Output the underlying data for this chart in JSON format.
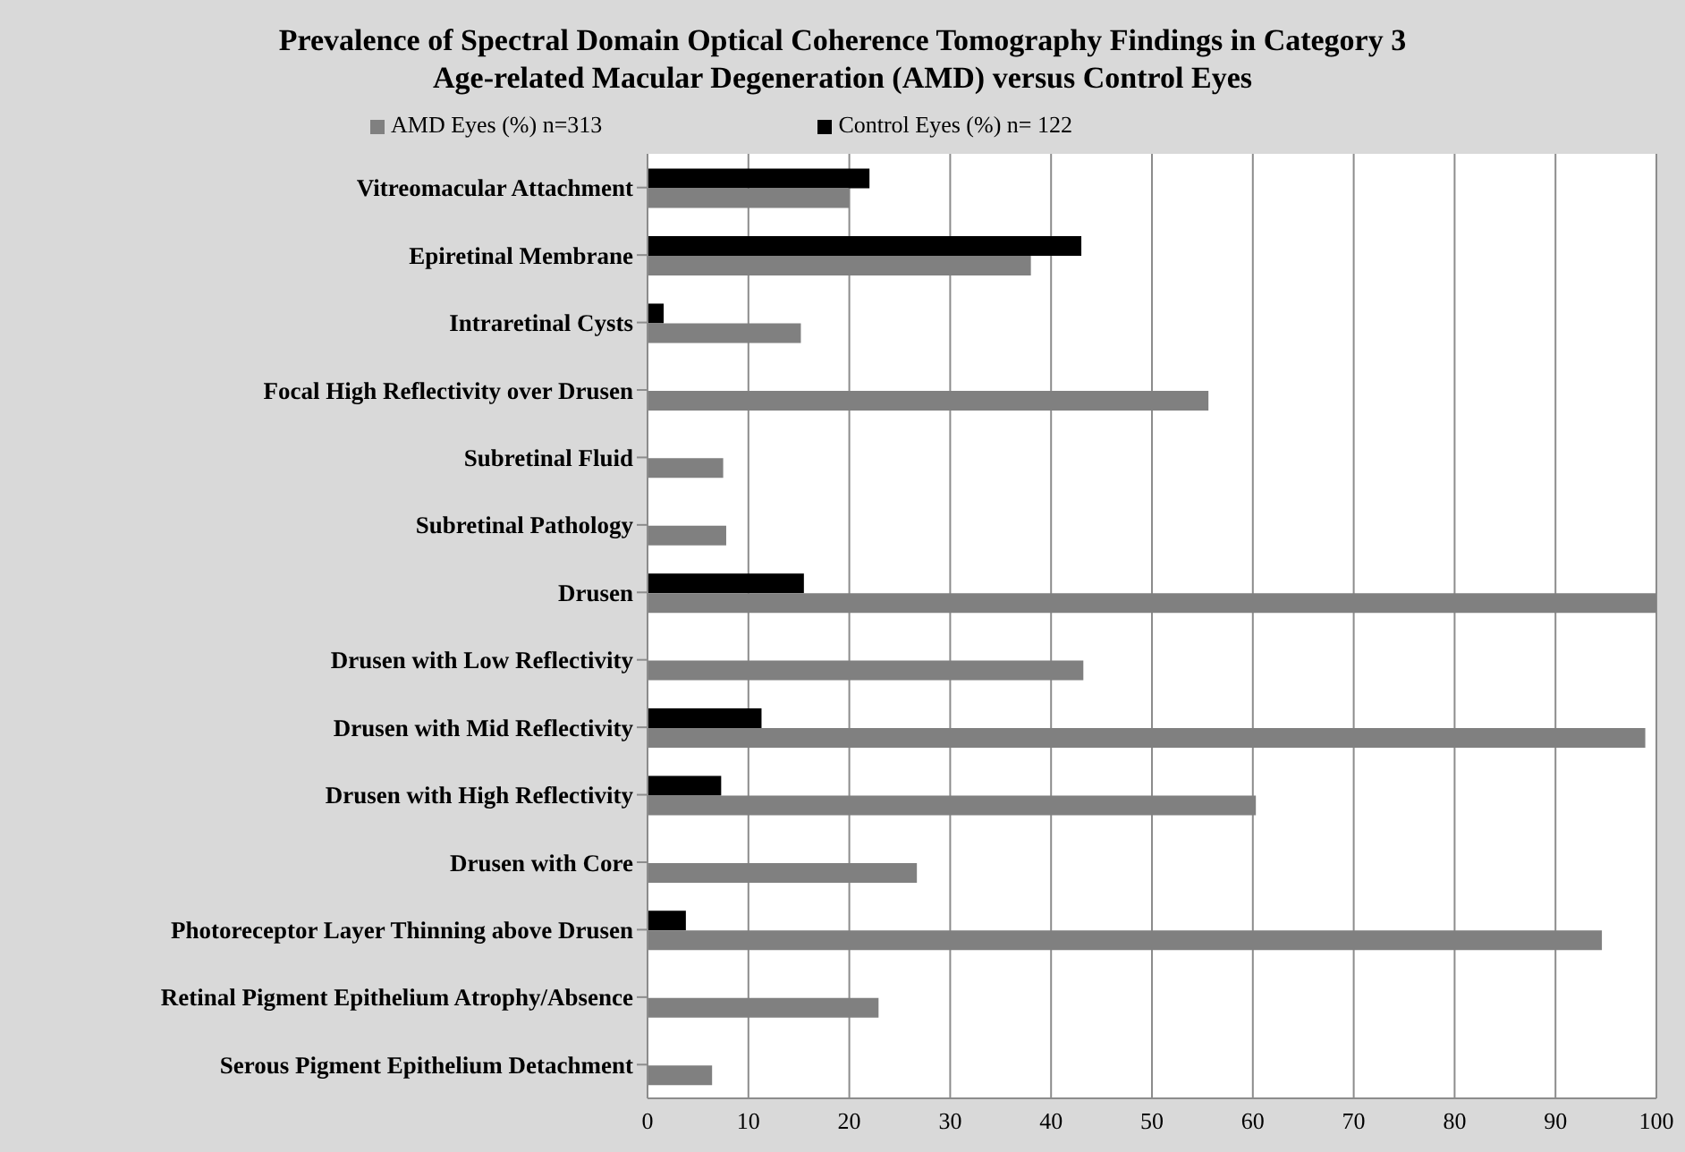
{
  "chart_data": {
    "type": "bar",
    "orientation": "horizontal",
    "title": "Prevalence of Spectral Domain Optical Coherence Tomography Findings in Category 3\nAge-related Macular Degeneration (AMD) versus Control Eyes",
    "categories": [
      "Vitreomacular Attachment",
      "Epiretinal Membrane",
      "Intraretinal Cysts",
      "Focal High Reflectivity over Drusen",
      "Subretinal Fluid",
      "Subretinal Pathology",
      "Drusen",
      "Drusen with Low Reflectivity",
      "Drusen with Mid Reflectivity",
      "Drusen with High Reflectivity",
      "Drusen with Core",
      "Photoreceptor Layer Thinning above Drusen",
      "Retinal Pigment Epithelium Atrophy/Absence",
      "Serous Pigment Epithelium Detachment"
    ],
    "series": [
      {
        "name": "Control Eyes (%) n= 122",
        "color": "#000000",
        "values": [
          22,
          43,
          1.6,
          0,
          0,
          0,
          15.5,
          0,
          11.3,
          7.3,
          0,
          3.8,
          0,
          0
        ]
      },
      {
        "name": "AMD Eyes (%) n=313",
        "color": "#808080",
        "values": [
          20,
          38,
          15.2,
          55.6,
          7.5,
          7.8,
          100,
          43.2,
          98.9,
          60.3,
          26.7,
          94.6,
          22.9,
          6.4
        ]
      }
    ],
    "xlim": [
      0,
      100
    ],
    "xticks": [
      0,
      10,
      20,
      30,
      40,
      50,
      60,
      70,
      80,
      90,
      100
    ],
    "grid": "x",
    "legend": "top"
  }
}
